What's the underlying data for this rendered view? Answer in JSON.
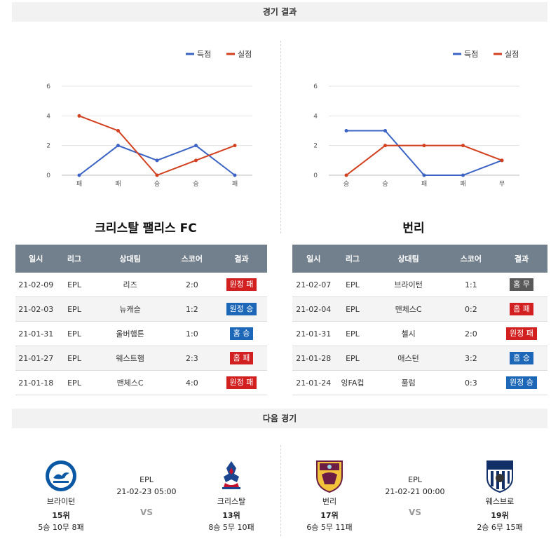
{
  "header": {
    "results_title": "경기 결과",
    "next_title": "다음 경기"
  },
  "charts": [
    {
      "type": "line",
      "legend": [
        "득점",
        "실점"
      ],
      "categories": [
        "패",
        "패",
        "승",
        "승",
        "패"
      ],
      "yticks": [
        0,
        2,
        4,
        6
      ],
      "ylim": [
        0,
        6
      ],
      "series": [
        {
          "name": "득점",
          "color": "#3b63c4",
          "values": [
            0,
            2,
            1,
            2,
            0
          ]
        },
        {
          "name": "실점",
          "color": "#d2401f",
          "values": [
            4,
            3,
            0,
            1,
            2
          ]
        }
      ]
    },
    {
      "type": "line",
      "legend": [
        "득점",
        "실점"
      ],
      "categories": [
        "승",
        "승",
        "패",
        "패",
        "무"
      ],
      "yticks": [
        0,
        2,
        4,
        6
      ],
      "ylim": [
        0,
        6
      ],
      "series": [
        {
          "name": "득점",
          "color": "#3b63c4",
          "values": [
            3,
            3,
            0,
            0,
            1
          ]
        },
        {
          "name": "실점",
          "color": "#d2401f",
          "values": [
            0,
            2,
            2,
            2,
            1
          ]
        }
      ]
    }
  ],
  "chart_data": [
    {
      "type": "line",
      "categories": [
        "패",
        "패",
        "승",
        "승",
        "패"
      ],
      "ylim": [
        0,
        6
      ],
      "series": [
        {
          "name": "득점",
          "values": [
            0,
            2,
            1,
            2,
            0
          ]
        },
        {
          "name": "실점",
          "values": [
            4,
            3,
            0,
            1,
            2
          ]
        }
      ]
    },
    {
      "type": "line",
      "categories": [
        "승",
        "승",
        "패",
        "패",
        "무"
      ],
      "ylim": [
        0,
        6
      ],
      "series": [
        {
          "name": "득점",
          "values": [
            3,
            3,
            0,
            0,
            1
          ]
        },
        {
          "name": "실점",
          "values": [
            0,
            2,
            2,
            2,
            1
          ]
        }
      ]
    }
  ],
  "teams": [
    {
      "name": "크리스탈 팰리스 FC"
    },
    {
      "name": "번리"
    }
  ],
  "table_headers": [
    "일시",
    "리그",
    "상대팀",
    "스코어",
    "결과"
  ],
  "tables": [
    [
      {
        "date": "21-02-09",
        "league": "EPL",
        "opponent": "리즈",
        "score": "2:0",
        "result": "원정 패",
        "kind": "loss"
      },
      {
        "date": "21-02-03",
        "league": "EPL",
        "opponent": "뉴캐슬",
        "score": "1:2",
        "result": "원정 승",
        "kind": "win"
      },
      {
        "date": "21-01-31",
        "league": "EPL",
        "opponent": "울버햄튼",
        "score": "1:0",
        "result": "홈 승",
        "kind": "win"
      },
      {
        "date": "21-01-27",
        "league": "EPL",
        "opponent": "웨스트햄",
        "score": "2:3",
        "result": "홈 패",
        "kind": "loss"
      },
      {
        "date": "21-01-18",
        "league": "EPL",
        "opponent": "맨체스C",
        "score": "4:0",
        "result": "원정 패",
        "kind": "loss"
      }
    ],
    [
      {
        "date": "21-02-07",
        "league": "EPL",
        "opponent": "브라이턴",
        "score": "1:1",
        "result": "홈 무",
        "kind": "draw"
      },
      {
        "date": "21-02-04",
        "league": "EPL",
        "opponent": "맨체스C",
        "score": "0:2",
        "result": "홈 패",
        "kind": "loss"
      },
      {
        "date": "21-01-31",
        "league": "EPL",
        "opponent": "첼시",
        "score": "2:0",
        "result": "원정 패",
        "kind": "loss"
      },
      {
        "date": "21-01-28",
        "league": "EPL",
        "opponent": "애스턴",
        "score": "3:2",
        "result": "홈 승",
        "kind": "win"
      },
      {
        "date": "21-01-24",
        "league": "잉FA컵",
        "opponent": "풀럼",
        "score": "0:3",
        "result": "원정 승",
        "kind": "win"
      }
    ]
  ],
  "next_matches": [
    {
      "league": "EPL",
      "datetime": "21-02-23 05:00",
      "vs": "VS",
      "home": {
        "name": "브라이턴",
        "rank": "15위",
        "record": "5승 10무 8패",
        "logo": "brighton-crest"
      },
      "away": {
        "name": "크리스탈",
        "rank": "13위",
        "record": "8승 5무 10패",
        "logo": "crystal-palace-crest"
      }
    },
    {
      "league": "EPL",
      "datetime": "21-02-21 00:00",
      "vs": "VS",
      "home": {
        "name": "번리",
        "rank": "17위",
        "record": "6승 5무 11패",
        "logo": "burnley-crest"
      },
      "away": {
        "name": "웨스브로",
        "rank": "19위",
        "record": "2승 6무 15패",
        "logo": "west-brom-crest"
      }
    }
  ]
}
